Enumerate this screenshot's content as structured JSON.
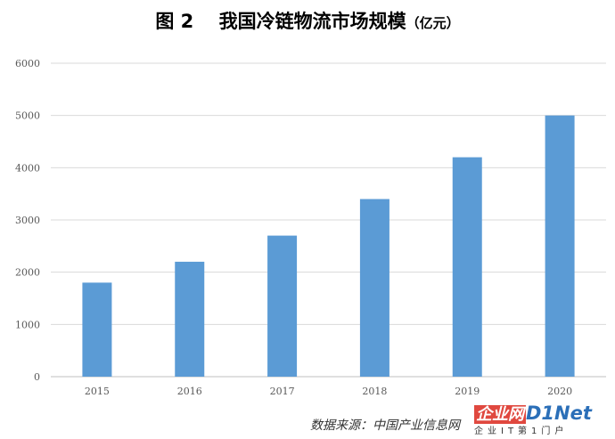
{
  "title": {
    "main": "图 2　 我国冷链物流市场规模",
    "unit": "（亿元）"
  },
  "chart_data": {
    "type": "bar",
    "categories": [
      "2015",
      "2016",
      "2017",
      "2018",
      "2019",
      "2020"
    ],
    "values": [
      1800,
      2200,
      2700,
      3400,
      4200,
      5000
    ],
    "ylim": [
      0,
      6000
    ],
    "yticks": [
      "0",
      "1000",
      "2000",
      "3000",
      "4000",
      "5000",
      "6000"
    ],
    "xlabel": "",
    "ylabel": "",
    "grid": true,
    "bar_color": "#5b9bd5"
  },
  "source": "数据来源：中国产业信息网",
  "watermark": {
    "part1": "企业网",
    "part2": "D1Net",
    "tagline": "企业IT第1门户"
  }
}
